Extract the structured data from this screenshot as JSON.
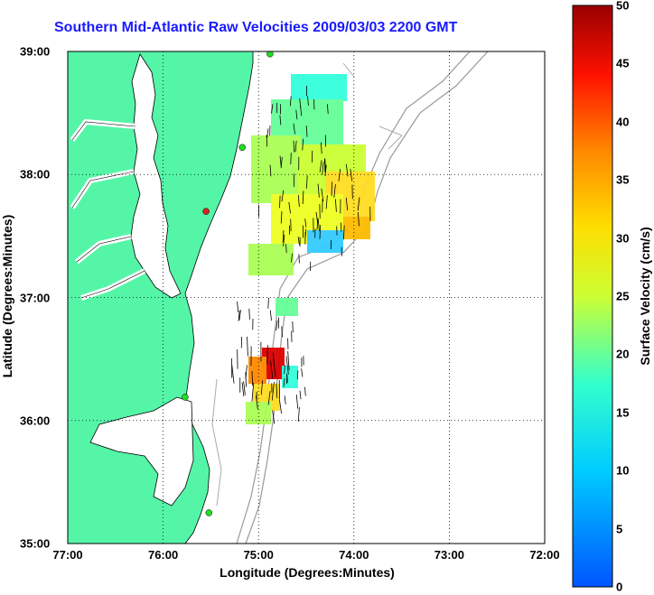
{
  "title": "Southern Mid-Atlantic Raw Velocities 2009/03/03 2200 GMT",
  "xlabel": "Longitude (Degrees:Minutes)",
  "ylabel": "Latitude (Degrees:Minutes)",
  "colorbar_label": "Surface Velocity (cm/s)",
  "x_ticks": [
    "77:00",
    "76:00",
    "75:00",
    "74:00",
    "73:00",
    "72:00"
  ],
  "y_ticks": [
    "39:00",
    "38:00",
    "37:00",
    "36:00",
    "35:00"
  ],
  "colorbar_ticks": [
    "50",
    "45",
    "40",
    "35",
    "30",
    "25",
    "20",
    "15",
    "10",
    "5",
    "0"
  ],
  "colors": {
    "land": "#55f5a8",
    "title": "#1a1aff",
    "contour": "#999999",
    "station": "#22dd22",
    "station_alt": "#dd2222"
  },
  "chart_data": {
    "type": "heatmap",
    "xlim": [
      -77,
      -72
    ],
    "ylim": [
      35,
      39
    ],
    "colorbar_range": [
      0,
      50
    ],
    "grid": true,
    "stations": [
      {
        "lon": -74.88,
        "lat": 38.98,
        "status": "active"
      },
      {
        "lon": -75.17,
        "lat": 38.22,
        "status": "active"
      },
      {
        "lon": -75.55,
        "lat": 37.7,
        "status": "alert"
      },
      {
        "lon": -75.77,
        "lat": 36.19,
        "status": "active"
      },
      {
        "lon": -75.52,
        "lat": 35.25,
        "status": "active"
      }
    ],
    "velocity_regions": [
      {
        "lon": -74.6,
        "lat": 38.55,
        "speed": 15
      },
      {
        "lon": -74.6,
        "lat": 38.25,
        "speed": 20
      },
      {
        "lon": -74.3,
        "lat": 37.95,
        "speed": 25
      },
      {
        "lon": -74.1,
        "lat": 37.75,
        "speed": 28
      },
      {
        "lon": -74.7,
        "lat": 37.7,
        "speed": 22
      },
      {
        "lon": -74.4,
        "lat": 37.45,
        "speed": 12
      },
      {
        "lon": -74.95,
        "lat": 36.85,
        "speed": 18
      },
      {
        "lon": -74.95,
        "lat": 36.5,
        "speed": 45
      },
      {
        "lon": -74.9,
        "lat": 36.25,
        "speed": 30
      },
      {
        "lon": -74.7,
        "lat": 36.35,
        "speed": 12
      }
    ]
  }
}
